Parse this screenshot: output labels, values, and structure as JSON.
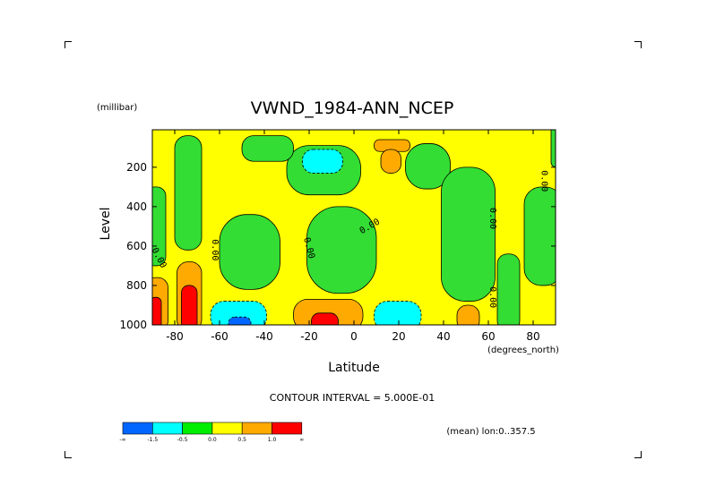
{
  "chart_data": {
    "type": "heatmap",
    "title": "VWND_1984-ANN_NCEP",
    "xlabel": "Latitude",
    "x_units": "(degrees_north)",
    "ylabel": "Level",
    "y_units": "(millibar)",
    "x_range": [
      -90,
      90
    ],
    "y_range": [
      1000,
      10
    ],
    "x_ticks": [
      "-80",
      "-60",
      "-40",
      "-20",
      "0",
      "20",
      "40",
      "60",
      "80"
    ],
    "x_tick_values": [
      -80,
      -60,
      -40,
      -20,
      0,
      20,
      40,
      60,
      80
    ],
    "y_ticks": [
      "200",
      "400",
      "600",
      "800",
      "1000"
    ],
    "y_tick_values": [
      200,
      400,
      600,
      800,
      1000
    ],
    "contour_interval_label": "CONTOUR INTERVAL = 5.000E-01",
    "subset_label": "(mean) lon:0..357.5",
    "contour_labels": [
      {
        "text": "0.00",
        "lat": -87,
        "lev": 660,
        "rotate": 62
      },
      {
        "text": "0.00",
        "lat": -62,
        "lev": 620,
        "rotate": 90
      },
      {
        "text": "0.00",
        "lat": -20,
        "lev": 610,
        "rotate": 75
      },
      {
        "text": "0.00",
        "lat": 7,
        "lev": 500,
        "rotate": -30
      },
      {
        "text": "0.00",
        "lat": 62,
        "lev": 460,
        "rotate": 90
      },
      {
        "text": "0.00",
        "lat": 62,
        "lev": 860,
        "rotate": 90
      },
      {
        "text": "0.00",
        "lat": 85,
        "lev": 270,
        "rotate": 90
      }
    ],
    "regions": [
      {
        "level": 1,
        "lat_min": -93,
        "lat_max": 93,
        "lev_min": -20,
        "lev_max": 1030
      },
      {
        "level": 0,
        "lat_min": -93,
        "lat_max": -84,
        "lev_min": 300,
        "lev_max": 700
      },
      {
        "level": 0,
        "lat_min": -80,
        "lat_max": -68,
        "lev_min": 40,
        "lev_max": 620
      },
      {
        "level": 0,
        "lat_min": -60,
        "lat_max": -33,
        "lev_min": 440,
        "lev_max": 820
      },
      {
        "level": 0,
        "lat_min": -30,
        "lat_max": 3,
        "lev_min": 90,
        "lev_max": 340
      },
      {
        "level": 0,
        "lat_min": -50,
        "lat_max": -27,
        "lev_min": 40,
        "lev_max": 170
      },
      {
        "level": 0,
        "lat_min": -21,
        "lat_max": 10,
        "lev_min": 400,
        "lev_max": 840
      },
      {
        "level": 0,
        "lat_min": 23,
        "lat_max": 43,
        "lev_min": 80,
        "lev_max": 310
      },
      {
        "level": 0,
        "lat_min": 39,
        "lat_max": 63,
        "lev_min": 200,
        "lev_max": 880
      },
      {
        "level": 0,
        "lat_min": 76,
        "lat_max": 93,
        "lev_min": 300,
        "lev_max": 800
      },
      {
        "level": 0,
        "lat_min": 88,
        "lat_max": 93,
        "lev_min": -20,
        "lev_max": 200
      },
      {
        "level": 0,
        "lat_min": 64,
        "lat_max": 74,
        "lev_min": 640,
        "lev_max": 1030
      },
      {
        "level": 2,
        "lat_min": 9,
        "lat_max": 25,
        "lev_min": 60,
        "lev_max": 120
      },
      {
        "level": 2,
        "lat_min": 12,
        "lat_max": 21,
        "lev_min": 110,
        "lev_max": 230
      },
      {
        "level": -1,
        "lat_min": -23,
        "lat_max": -5,
        "lev_min": 110,
        "lev_max": 230
      },
      {
        "level": 2,
        "lat_min": -93,
        "lat_max": -83,
        "lev_min": 760,
        "lev_max": 1030
      },
      {
        "level": 2,
        "lat_min": -79,
        "lat_max": -68,
        "lev_min": 680,
        "lev_max": 1030
      },
      {
        "level": 3,
        "lat_min": -91,
        "lat_max": -86,
        "lev_min": 860,
        "lev_max": 1030
      },
      {
        "level": 3,
        "lat_min": -77,
        "lat_max": -70,
        "lev_min": 800,
        "lev_max": 1030
      },
      {
        "level": -1,
        "lat_min": -64,
        "lat_max": -39,
        "lev_min": 880,
        "lev_max": 1030
      },
      {
        "level": -2,
        "lat_min": -56,
        "lat_max": -46,
        "lev_min": 960,
        "lev_max": 1030
      },
      {
        "level": 2,
        "lat_min": -27,
        "lat_max": 4,
        "lev_min": 870,
        "lev_max": 1030
      },
      {
        "level": 3,
        "lat_min": -19,
        "lat_max": -7,
        "lev_min": 940,
        "lev_max": 1030
      },
      {
        "level": -1,
        "lat_min": 9,
        "lat_max": 30,
        "lev_min": 880,
        "lev_max": 1030
      },
      {
        "level": 2,
        "lat_min": 46,
        "lat_max": 56,
        "lev_min": 900,
        "lev_max": 1030
      }
    ]
  },
  "colorbar": {
    "labels": [
      "-∞",
      "-1.5",
      "-0.5",
      "0.0",
      "0.5",
      "1.0",
      "∞"
    ],
    "colors": [
      "#0066ff",
      "#00ffff",
      "#00ee00",
      "#ffff00",
      "#ffaa00",
      "#ff0000"
    ]
  },
  "colors": {
    "level_-2": "#0066ff",
    "level_-1": "#00ffff",
    "level_0": "#33dd33",
    "level_1": "#ffff00",
    "level_2": "#ffaa00",
    "level_3": "#ff0000",
    "contour_line": "#000000"
  }
}
